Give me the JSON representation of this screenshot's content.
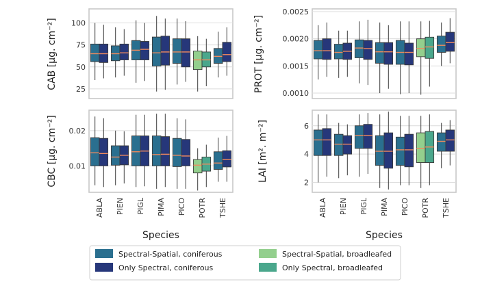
{
  "colors": {
    "ss_con": "#2a6f8f",
    "os_con": "#26377a",
    "ss_broad": "#93cf8d",
    "os_broad": "#4aa78c",
    "median": "#f08a5d"
  },
  "axis_title": "Species",
  "legend": [
    {
      "label": "Spectral-Spatial, coniferous",
      "color_key": "ss_con"
    },
    {
      "label": "Only Spectral, coniferous",
      "color_key": "os_con"
    },
    {
      "label": "Spectral-Spatial, broadleafed",
      "color_key": "ss_broad"
    },
    {
      "label": "Only Spectral, broadleafed",
      "color_key": "os_broad"
    }
  ],
  "chart_data": [
    {
      "type": "box",
      "id": "cab",
      "ylabel": "CAB [μg. cm⁻²]",
      "ylim": [
        14,
        116
      ],
      "yticks": [
        25,
        50,
        75,
        100
      ],
      "ytick_labels": [
        "25",
        "50",
        "75",
        "100"
      ],
      "categories": [
        "ABLA",
        "PIEN",
        "PIGL",
        "PIMA",
        "PICO",
        "POTR",
        "TSHE"
      ],
      "series": [
        {
          "name": "Spectral-Spatial",
          "boxes": [
            {
              "min": 35,
              "q1": 56,
              "median": 65,
              "q3": 76,
              "max": 100
            },
            {
              "min": 38,
              "q1": 57,
              "median": 65,
              "q3": 74,
              "max": 95
            },
            {
              "min": 32,
              "q1": 58,
              "median": 69,
              "q3": 80,
              "max": 103
            },
            {
              "min": 22,
              "q1": 51,
              "median": 66,
              "q3": 84,
              "max": 108
            },
            {
              "min": 30,
              "q1": 54,
              "median": 67,
              "q3": 82,
              "max": 105
            },
            {
              "min": 22,
              "q1": 47,
              "median": 58,
              "q3": 68,
              "max": 85
            },
            {
              "min": 38,
              "q1": 54,
              "median": 62,
              "q3": 71,
              "max": 90
            }
          ]
        },
        {
          "name": "Only Spectral",
          "boxes": [
            {
              "min": 37,
              "q1": 55,
              "median": 65,
              "q3": 76,
              "max": 98
            },
            {
              "min": 40,
              "q1": 58,
              "median": 66,
              "q3": 76,
              "max": 93
            },
            {
              "min": 34,
              "q1": 58,
              "median": 70,
              "q3": 79,
              "max": 100
            },
            {
              "min": 24,
              "q1": 52,
              "median": 67,
              "q3": 85,
              "max": 105
            },
            {
              "min": 33,
              "q1": 50,
              "median": 67,
              "q3": 82,
              "max": 102
            },
            {
              "min": 28,
              "q1": 50,
              "median": 58,
              "q3": 67,
              "max": 82
            },
            {
              "min": 40,
              "q1": 56,
              "median": 64,
              "q3": 78,
              "max": 95
            }
          ]
        }
      ]
    },
    {
      "type": "box",
      "id": "prot",
      "ylabel": "PROT [μg. cm⁻²]",
      "ylim": [
        0.0009,
        0.00255
      ],
      "yticks": [
        0.001,
        0.0015,
        0.002,
        0.0025
      ],
      "ytick_labels": [
        "0.0010",
        "0.0015",
        "0.0020",
        "0.0025"
      ],
      "categories": [
        "ABLA",
        "PIEN",
        "PIGL",
        "PIMA",
        "PICO",
        "POTR",
        "TSHE"
      ],
      "series": [
        {
          "name": "Spectral-Spatial",
          "boxes": [
            {
              "min": 0.00125,
              "q1": 0.00163,
              "median": 0.00178,
              "q3": 0.00197,
              "max": 0.00225
            },
            {
              "min": 0.00128,
              "q1": 0.00163,
              "median": 0.00175,
              "q3": 0.0019,
              "max": 0.00215
            },
            {
              "min": 0.00118,
              "q1": 0.00165,
              "median": 0.00183,
              "q3": 0.00198,
              "max": 0.00232
            },
            {
              "min": 0.001,
              "q1": 0.00155,
              "median": 0.00176,
              "q3": 0.00193,
              "max": 0.0023
            },
            {
              "min": 0.00098,
              "q1": 0.00153,
              "median": 0.00175,
              "q3": 0.00197,
              "max": 0.00232
            },
            {
              "min": 0.00097,
              "q1": 0.00167,
              "median": 0.00182,
              "q3": 0.002,
              "max": 0.00232
            },
            {
              "min": 0.0015,
              "q1": 0.00175,
              "median": 0.00188,
              "q3": 0.00205,
              "max": 0.0023
            }
          ]
        },
        {
          "name": "Only Spectral",
          "boxes": [
            {
              "min": 0.0013,
              "q1": 0.00162,
              "median": 0.00178,
              "q3": 0.002,
              "max": 0.0023
            },
            {
              "min": 0.0013,
              "q1": 0.00162,
              "median": 0.00177,
              "q3": 0.00192,
              "max": 0.00215
            },
            {
              "min": 0.00115,
              "q1": 0.00162,
              "median": 0.00182,
              "q3": 0.00197,
              "max": 0.00235
            },
            {
              "min": 0.00108,
              "q1": 0.00153,
              "median": 0.00176,
              "q3": 0.00193,
              "max": 0.00225
            },
            {
              "min": 0.001,
              "q1": 0.00152,
              "median": 0.00175,
              "q3": 0.00192,
              "max": 0.00232
            },
            {
              "min": 0.00112,
              "q1": 0.00164,
              "median": 0.00185,
              "q3": 0.00203,
              "max": 0.00233
            },
            {
              "min": 0.00155,
              "q1": 0.00177,
              "median": 0.00193,
              "q3": 0.00212,
              "max": 0.00238
            }
          ]
        }
      ]
    },
    {
      "type": "box",
      "id": "cbc",
      "ylabel": "CBC [μg. cm⁻²]",
      "ylim": [
        0.0025,
        0.0258
      ],
      "yticks": [
        0.01,
        0.02
      ],
      "ytick_labels": [
        "0.01",
        "0.02"
      ],
      "categories": [
        "ABLA",
        "PIEN",
        "PIGL",
        "PIMA",
        "PICO",
        "POTR",
        "TSHE"
      ],
      "series": [
        {
          "name": "Spectral-Spatial",
          "boxes": [
            {
              "min": 0.0045,
              "q1": 0.01,
              "median": 0.0137,
              "q3": 0.018,
              "max": 0.024
            },
            {
              "min": 0.0045,
              "q1": 0.0102,
              "median": 0.0125,
              "q3": 0.0157,
              "max": 0.02
            },
            {
              "min": 0.004,
              "q1": 0.01,
              "median": 0.014,
              "q3": 0.0185,
              "max": 0.0245
            },
            {
              "min": 0.0035,
              "q1": 0.01,
              "median": 0.0132,
              "q3": 0.0185,
              "max": 0.0248
            },
            {
              "min": 0.0035,
              "q1": 0.0098,
              "median": 0.013,
              "q3": 0.0178,
              "max": 0.0235
            },
            {
              "min": 0.003,
              "q1": 0.008,
              "median": 0.0102,
              "q3": 0.0118,
              "max": 0.015
            },
            {
              "min": 0.0055,
              "q1": 0.009,
              "median": 0.0108,
              "q3": 0.014,
              "max": 0.018
            }
          ]
        },
        {
          "name": "Only Spectral",
          "boxes": [
            {
              "min": 0.004,
              "q1": 0.01,
              "median": 0.0135,
              "q3": 0.0178,
              "max": 0.0235
            },
            {
              "min": 0.005,
              "q1": 0.0103,
              "median": 0.013,
              "q3": 0.0157,
              "max": 0.0198
            },
            {
              "min": 0.0042,
              "q1": 0.01,
              "median": 0.0142,
              "q3": 0.0185,
              "max": 0.0245
            },
            {
              "min": 0.004,
              "q1": 0.01,
              "median": 0.0133,
              "q3": 0.0183,
              "max": 0.0248
            },
            {
              "min": 0.0035,
              "q1": 0.01,
              "median": 0.0128,
              "q3": 0.0175,
              "max": 0.0232
            },
            {
              "min": 0.004,
              "q1": 0.0085,
              "median": 0.0105,
              "q3": 0.0125,
              "max": 0.016
            },
            {
              "min": 0.0055,
              "q1": 0.0097,
              "median": 0.0118,
              "q3": 0.0143,
              "max": 0.0185
            }
          ]
        }
      ]
    },
    {
      "type": "box",
      "id": "lai",
      "ylabel": "LAI [m². m⁻²]",
      "ylim": [
        1.3,
        7.1
      ],
      "yticks": [
        2,
        4,
        6
      ],
      "ytick_labels": [
        "2",
        "4",
        "6"
      ],
      "categories": [
        "ABLA",
        "PIEN",
        "PIGL",
        "PIMA",
        "PICO",
        "POTR",
        "TSHE"
      ],
      "series": [
        {
          "name": "Spectral-Spatial",
          "boxes": [
            {
              "min": 2.0,
              "q1": 3.9,
              "median": 5.0,
              "q3": 5.7,
              "max": 6.8
            },
            {
              "min": 2.3,
              "q1": 3.9,
              "median": 4.7,
              "q3": 5.4,
              "max": 6.2
            },
            {
              "min": 2.4,
              "q1": 4.4,
              "median": 5.3,
              "q3": 6.0,
              "max": 6.8
            },
            {
              "min": 1.6,
              "q1": 3.2,
              "median": 4.2,
              "q3": 5.3,
              "max": 6.8
            },
            {
              "min": 1.8,
              "q1": 3.2,
              "median": 4.3,
              "q3": 5.2,
              "max": 6.7
            },
            {
              "min": 1.6,
              "q1": 3.4,
              "median": 4.4,
              "q3": 5.5,
              "max": 6.7
            },
            {
              "min": 3.0,
              "q1": 4.2,
              "median": 4.9,
              "q3": 5.5,
              "max": 6.2
            }
          ]
        },
        {
          "name": "Only Spectral",
          "boxes": [
            {
              "min": 2.4,
              "q1": 3.9,
              "median": 5.0,
              "q3": 5.8,
              "max": 6.8
            },
            {
              "min": 2.5,
              "q1": 4.0,
              "median": 4.7,
              "q3": 5.3,
              "max": 6.1
            },
            {
              "min": 2.6,
              "q1": 4.4,
              "median": 5.3,
              "q3": 6.1,
              "max": 6.9
            },
            {
              "min": 1.5,
              "q1": 3.0,
              "median": 4.2,
              "q3": 5.5,
              "max": 7.0
            },
            {
              "min": 1.8,
              "q1": 3.1,
              "median": 4.3,
              "q3": 5.4,
              "max": 6.7
            },
            {
              "min": 1.8,
              "q1": 3.4,
              "median": 4.5,
              "q3": 5.6,
              "max": 6.8
            },
            {
              "min": 3.2,
              "q1": 4.2,
              "median": 5.0,
              "q3": 5.7,
              "max": 6.4
            }
          ]
        }
      ]
    }
  ]
}
